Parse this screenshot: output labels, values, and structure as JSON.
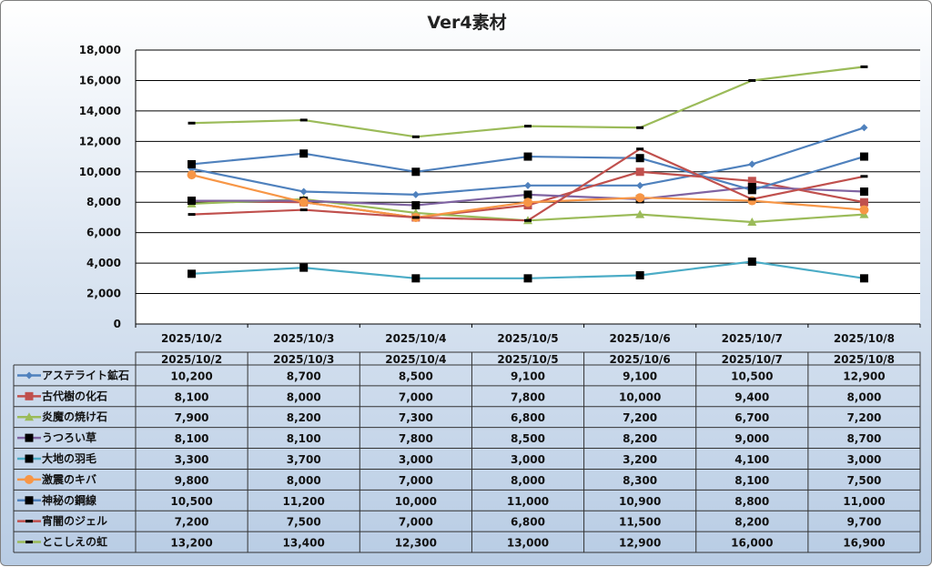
{
  "chart_data": {
    "type": "line",
    "title": "Ver4素材",
    "categories": [
      "2025/10/2",
      "2025/10/3",
      "2025/10/4",
      "2025/10/5",
      "2025/10/6",
      "2025/10/7",
      "2025/10/8"
    ],
    "ylim": [
      0,
      18000
    ],
    "yticks": [
      0,
      2000,
      4000,
      6000,
      8000,
      10000,
      12000,
      14000,
      16000,
      18000
    ],
    "ytick_labels": [
      "0",
      "2,000",
      "4,000",
      "6,000",
      "8,000",
      "10,000",
      "12,000",
      "14,000",
      "16,000",
      "18,000"
    ],
    "grid": true,
    "legend": "data-table",
    "series": [
      {
        "name": "アステライト鉱石",
        "color": "#4F81BD",
        "marker": "diamond",
        "values": [
          10200,
          8700,
          8500,
          9100,
          9100,
          10500,
          12900
        ],
        "labels": [
          "10,200",
          "8,700",
          "8,500",
          "9,100",
          "9,100",
          "10,500",
          "12,900"
        ]
      },
      {
        "name": "古代樹の化石",
        "color": "#C0504D",
        "marker": "square",
        "values": [
          8100,
          8000,
          7000,
          7800,
          10000,
          9400,
          8000
        ],
        "labels": [
          "8,100",
          "8,000",
          "7,000",
          "7,800",
          "10,000",
          "9,400",
          "8,000"
        ]
      },
      {
        "name": "炎魔の焼け石",
        "color": "#9BBB59",
        "marker": "triangle",
        "values": [
          7900,
          8200,
          7300,
          6800,
          7200,
          6700,
          7200
        ],
        "labels": [
          "7,900",
          "8,200",
          "7,300",
          "6,800",
          "7,200",
          "6,700",
          "7,200"
        ]
      },
      {
        "name": "うつろい草",
        "color": "#8064A2",
        "marker": "black-square",
        "values": [
          8100,
          8100,
          7800,
          8500,
          8200,
          9000,
          8700
        ],
        "labels": [
          "8,100",
          "8,100",
          "7,800",
          "8,500",
          "8,200",
          "9,000",
          "8,700"
        ]
      },
      {
        "name": "大地の羽毛",
        "color": "#4BACC6",
        "marker": "black-square",
        "values": [
          3300,
          3700,
          3000,
          3000,
          3200,
          4100,
          3000
        ],
        "labels": [
          "3,300",
          "3,700",
          "3,000",
          "3,000",
          "3,200",
          "4,100",
          "3,000"
        ]
      },
      {
        "name": "激震のキバ",
        "color": "#F79646",
        "marker": "circle",
        "values": [
          9800,
          8000,
          7000,
          8000,
          8300,
          8100,
          7500
        ],
        "labels": [
          "9,800",
          "8,000",
          "7,000",
          "8,000",
          "8,300",
          "8,100",
          "7,500"
        ]
      },
      {
        "name": "神秘の鋼線",
        "color": "#4F81BD",
        "marker": "black-square",
        "values": [
          10500,
          11200,
          10000,
          11000,
          10900,
          8800,
          11000
        ],
        "labels": [
          "10,500",
          "11,200",
          "10,000",
          "11,000",
          "10,900",
          "8,800",
          "11,000"
        ]
      },
      {
        "name": "宵闇のジェル",
        "color": "#C0504D",
        "marker": "dash",
        "values": [
          7200,
          7500,
          7000,
          6800,
          11500,
          8200,
          9700
        ],
        "labels": [
          "7,200",
          "7,500",
          "7,000",
          "6,800",
          "11,500",
          "8,200",
          "9,700"
        ]
      },
      {
        "name": "とこしえの虹",
        "color": "#9BBB59",
        "marker": "dash",
        "values": [
          13200,
          13400,
          12300,
          13000,
          12900,
          16000,
          16900
        ],
        "labels": [
          "13,200",
          "13,400",
          "12,300",
          "13,000",
          "12,900",
          "16,000",
          "16,900"
        ]
      }
    ]
  }
}
